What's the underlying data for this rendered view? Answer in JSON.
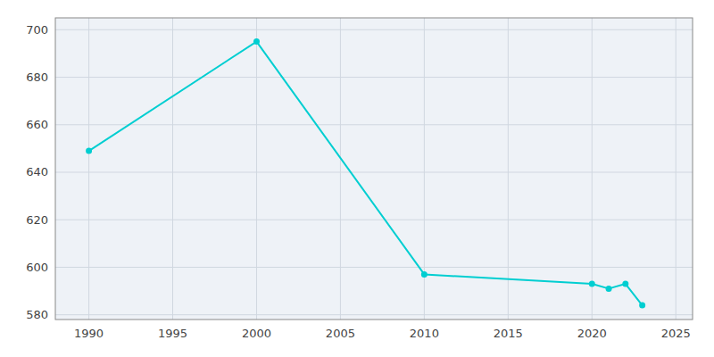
{
  "chart_data": {
    "type": "line",
    "x": [
      1990,
      2000,
      2010,
      2020,
      2021,
      2022,
      2023
    ],
    "values": [
      649,
      695,
      597,
      593,
      591,
      593,
      584
    ],
    "color": "#00CED1",
    "marker": "circle",
    "xlim": [
      1988,
      2026
    ],
    "ylim": [
      578,
      705
    ],
    "xticks": [
      1990,
      1995,
      2000,
      2005,
      2010,
      2015,
      2020,
      2025
    ],
    "yticks": [
      580,
      600,
      620,
      640,
      660,
      680,
      700
    ],
    "grid": true
  }
}
